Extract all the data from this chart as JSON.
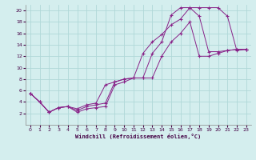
{
  "xlabel": "Windchill (Refroidissement éolien,°C)",
  "background_color": "#d4eeee",
  "grid_color": "#b0d8d8",
  "line_color": "#882288",
  "xlim": [
    -0.5,
    23.5
  ],
  "ylim": [
    0,
    21
  ],
  "xticks": [
    0,
    1,
    2,
    3,
    4,
    5,
    6,
    7,
    8,
    9,
    10,
    11,
    12,
    13,
    14,
    15,
    16,
    17,
    18,
    19,
    20,
    21,
    22,
    23
  ],
  "yticks": [
    2,
    4,
    6,
    8,
    10,
    12,
    14,
    16,
    18,
    20
  ],
  "line1_x": [
    0,
    1,
    2,
    3,
    4,
    5,
    6,
    7,
    8,
    9,
    10,
    11,
    12,
    13,
    14,
    15,
    16,
    17,
    18,
    19,
    20,
    21,
    22,
    23
  ],
  "line1_y": [
    5.5,
    4.0,
    2.2,
    3.0,
    3.2,
    2.2,
    2.8,
    3.0,
    3.2,
    7.0,
    7.5,
    8.2,
    12.5,
    14.5,
    15.8,
    17.5,
    18.5,
    20.5,
    20.5,
    20.5,
    20.5,
    19.0,
    13.0,
    13.2
  ],
  "line2_x": [
    0,
    1,
    2,
    3,
    4,
    5,
    6,
    7,
    8,
    9,
    10,
    11,
    12,
    13,
    14,
    15,
    16,
    17,
    18,
    19,
    20,
    21,
    22,
    23
  ],
  "line2_y": [
    5.5,
    4.0,
    2.2,
    3.0,
    3.2,
    2.8,
    3.5,
    3.8,
    7.0,
    7.5,
    8.0,
    8.2,
    8.2,
    12.5,
    14.5,
    19.2,
    20.5,
    20.5,
    19.0,
    12.8,
    12.8,
    13.0,
    13.2,
    13.2
  ],
  "line3_x": [
    0,
    1,
    2,
    3,
    4,
    5,
    6,
    7,
    8,
    9,
    10,
    11,
    12,
    13,
    14,
    15,
    16,
    17,
    18,
    19,
    20,
    21,
    22,
    23
  ],
  "line3_y": [
    5.5,
    4.0,
    2.2,
    3.0,
    3.2,
    2.5,
    3.2,
    3.5,
    3.8,
    7.5,
    8.0,
    8.2,
    8.2,
    8.2,
    12.0,
    14.5,
    16.0,
    18.0,
    12.0,
    12.0,
    12.5,
    13.0,
    13.2,
    13.2
  ]
}
